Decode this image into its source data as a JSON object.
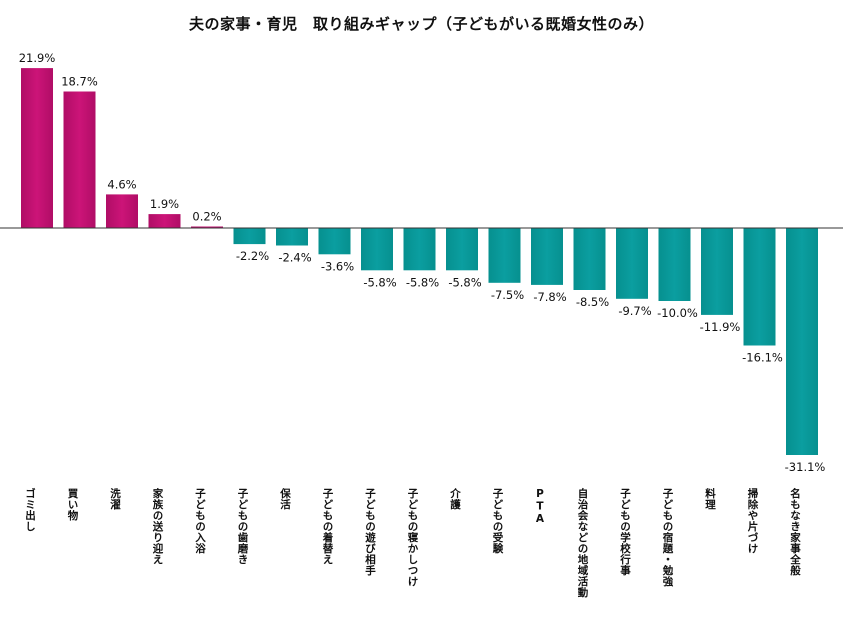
{
  "chart_data": {
    "type": "bar",
    "title": "夫の家事・育児　取り組みギャップ（子どもがいる既婚女性のみ）",
    "xlabel": "",
    "ylabel": "",
    "ylim": [
      -31.1,
      21.9
    ],
    "grid": false,
    "legend": "none",
    "categories": [
      "ゴミ出し",
      "買い物",
      "洗濯",
      "家族の送り迎え",
      "子どもの入浴",
      "子どもの歯磨き",
      "保活",
      "子どもの着替え",
      "子どもの遊び相手",
      "子どもの寝かしつけ",
      "介護",
      "子どもの受験",
      "PTA",
      "自治会などの地域活動",
      "子どもの学校行事",
      "子どもの宿題・勉強",
      "料理",
      "掃除や片づけ",
      "名もなき家事全般"
    ],
    "values": [
      21.9,
      18.7,
      4.6,
      1.9,
      0.2,
      -2.2,
      -2.4,
      -3.6,
      -5.8,
      -5.8,
      -5.8,
      -7.5,
      -7.8,
      -8.5,
      -9.7,
      -10.0,
      -11.9,
      -16.1,
      -31.1
    ],
    "data_labels": [
      "21.9%",
      "18.7%",
      "4.6%",
      "1.9%",
      "0.2%",
      "-2.2%",
      "-2.4%",
      "-3.6%",
      "-5.8%",
      "-5.8%",
      "-5.8%",
      "-7.5%",
      "-7.8%",
      "-8.5%",
      "-9.7%",
      "-10.0%",
      "-11.9%",
      "-16.1%",
      "-31.1%"
    ],
    "colors": {
      "positive": "#c0106e",
      "negative": "#08979a",
      "axis": "#333333"
    }
  }
}
